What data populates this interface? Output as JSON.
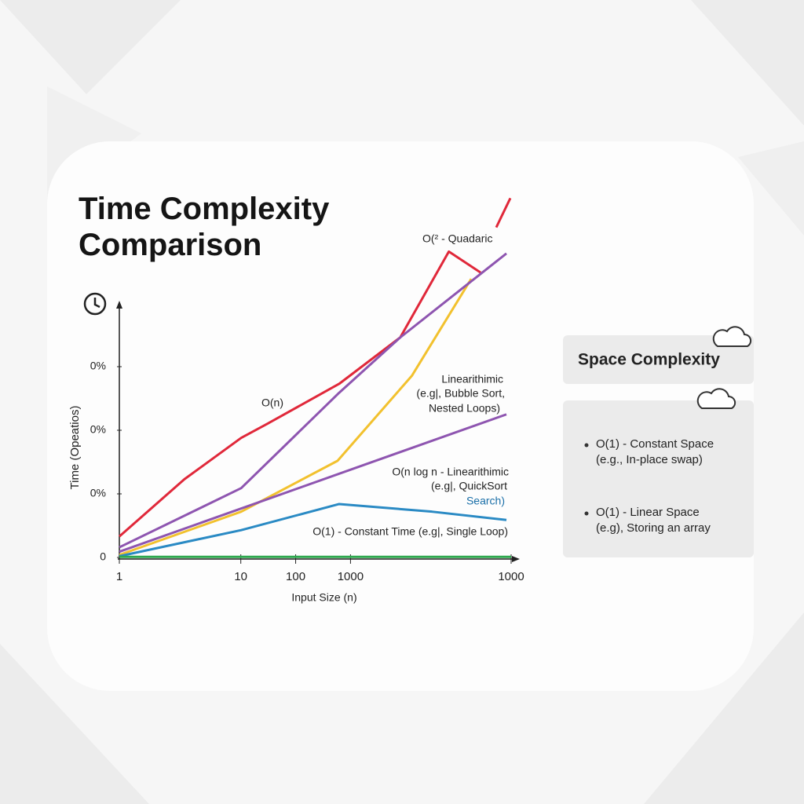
{
  "chart_data": {
    "type": "line",
    "title": "Time Complexity Comparison",
    "x_label": "Input Size (n)",
    "y_label": "Time (Opeatios)",
    "xlim": [
      0,
      100
    ],
    "xticks": [
      {
        "value": 0,
        "label": "1"
      },
      {
        "value": 31,
        "label": "10"
      },
      {
        "value": 45,
        "label": "100"
      },
      {
        "value": 59,
        "label": "1000"
      },
      {
        "value": 100,
        "label": "1000"
      }
    ],
    "ylim": [
      0,
      5.7
    ],
    "yticks": [
      0,
      {
        "value": 1,
        "label": "0%"
      },
      {
        "value": 2,
        "label": "0%"
      },
      {
        "value": 3,
        "label": "0%"
      }
    ],
    "series": [
      {
        "color": "#e0283a",
        "x": [
          0,
          16.6,
          31.1,
          37.7,
          56.1,
          71.7,
          84.1,
          92.2,
          null,
          96.2,
          99.8
        ],
        "values": [
          0.33,
          1.23,
          1.88,
          2.1,
          2.73,
          3.46,
          4.81,
          4.48,
          null,
          5.19,
          5.65
        ]
      },
      {
        "color": "#f2c12e",
        "x": [
          0,
          31.1,
          55.7,
          74.7,
          89.8
        ],
        "values": [
          0.04,
          0.72,
          1.52,
          2.86,
          4.38
        ]
      },
      {
        "color": "#8e55b0",
        "x": [
          0,
          31.1,
          56.1,
          71.7,
          98.8
        ],
        "values": [
          0.16,
          1.09,
          2.59,
          3.46,
          4.78
        ]
      },
      {
        "color": "#8e55b0",
        "x": [
          0,
          98.8
        ],
        "values": [
          0.09,
          2.25
        ]
      },
      {
        "color": "#2a8ac4",
        "x": [
          0,
          31.1,
          56.1,
          79.8,
          98.8
        ],
        "values": [
          0.02,
          0.43,
          0.84,
          0.72,
          0.59
        ]
      },
      {
        "color": "#2fa84f",
        "x": [
          0,
          100
        ],
        "values": [
          0.01,
          0.01
        ]
      }
    ],
    "annotations": [
      {
        "text": "O(² - Quadaric"
      },
      {
        "text": "O(n)"
      },
      {
        "text": "Linearithimic"
      },
      {
        "text": "(e.g|, Bubble Sort,"
      },
      {
        "text": "Nested Loops)"
      },
      {
        "text": "O(n log n - Linearithimic"
      },
      {
        "text": "(e.g|, QuickSort"
      },
      {
        "text": "Search)",
        "color": "#1a6fa8"
      },
      {
        "text": "O(1) - Constant Time (e.g|, Single Loop)"
      }
    ]
  },
  "side_panel": {
    "title": "Space Complexity",
    "items": [
      {
        "label": "O(1) - Constant Space",
        "example": "(e.g., In-place swap)"
      },
      {
        "label": "O(1) - Linear Space",
        "example": "(e.g), Storing an array"
      }
    ]
  }
}
